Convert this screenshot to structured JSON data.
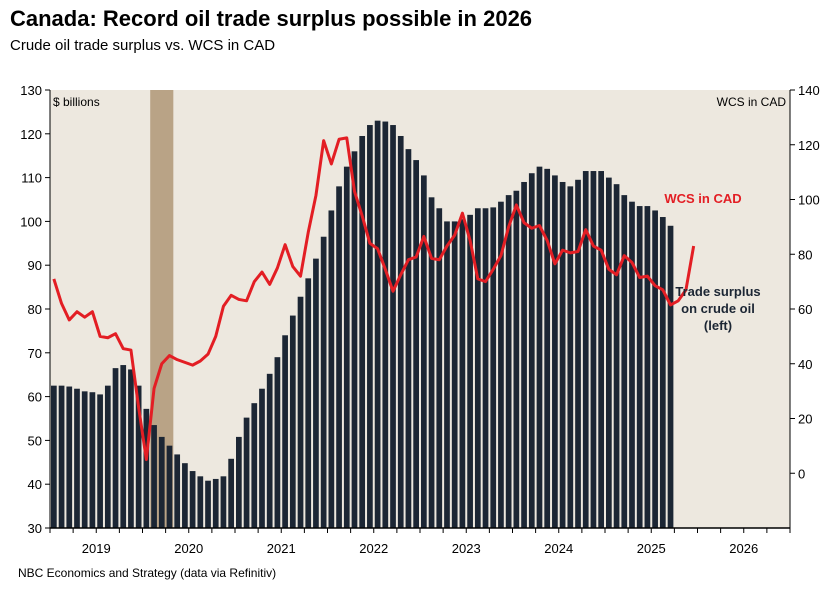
{
  "title": "Canada: Record oil trade surplus possible in 2026",
  "subtitle": "Crude oil trade surplus vs. WCS in CAD",
  "source": "NBC Economics and Strategy (data via Refinitiv)",
  "colors": {
    "plot_bg": "#ede8df",
    "bars": "#1c2634",
    "line": "#e31e24",
    "recession": "#b9a386",
    "axis": "#000000"
  },
  "chart_data": {
    "type": "bar+line",
    "xlabel": "",
    "x_tick_labels": [
      "2019",
      "2020",
      "2021",
      "2022",
      "2023",
      "2024",
      "2025",
      "2026"
    ],
    "left_axis": {
      "unit_label": "$ billions",
      "ylim": [
        30,
        130
      ],
      "ticks": [
        30,
        40,
        50,
        60,
        70,
        80,
        90,
        100,
        110,
        120,
        130
      ]
    },
    "right_axis": {
      "unit_label": "WCS in CAD",
      "ylim": [
        -20,
        140
      ],
      "ticks": [
        0,
        20,
        40,
        60,
        80,
        100,
        120,
        140
      ]
    },
    "shaded_period": {
      "start": "2020-02",
      "end": "2020-04"
    },
    "x_start": "2019-01",
    "x_end": "2026-12",
    "series": [
      {
        "name": "Trade surplus on crude oil (left)",
        "type": "bar",
        "axis": "left",
        "start": "2019-01",
        "values": [
          62.5,
          62.5,
          62.3,
          61.8,
          61.2,
          61,
          60.5,
          62.5,
          66.5,
          67.2,
          66.2,
          62.5,
          57.2,
          53.5,
          50.8,
          48.8,
          46.8,
          44.8,
          43,
          41.8,
          40.8,
          41.2,
          41.8,
          45.8,
          50.8,
          55.2,
          58.5,
          61.8,
          65.2,
          69,
          74,
          78.5,
          82.8,
          87,
          91.5,
          96.5,
          102.5,
          108,
          112.5,
          116,
          119.5,
          122,
          123,
          122.8,
          122,
          119.5,
          116.5,
          114,
          110.5,
          105.5,
          103,
          100,
          100,
          100.5,
          101.5,
          103,
          103,
          103.2,
          104.5,
          106,
          107,
          109,
          111,
          112.5,
          112,
          110.5,
          109,
          108,
          109.5,
          111.5,
          111.5,
          111.5,
          110,
          108.5,
          106,
          104.5,
          103.5,
          103.5,
          102.5,
          101,
          99
        ]
      },
      {
        "name": "WCS in CAD",
        "type": "line",
        "axis": "right",
        "start": "2019-01",
        "values": [
          71,
          62,
          56,
          59,
          57,
          59,
          50,
          49.5,
          51,
          45.5,
          45,
          24,
          5,
          31,
          40,
          43,
          41.5,
          40.5,
          39.5,
          41,
          43.5,
          50,
          61,
          65,
          63.5,
          63,
          70,
          73.5,
          69,
          75,
          83.5,
          75.5,
          72,
          88,
          101.5,
          121.5,
          113,
          122,
          122.5,
          103,
          94,
          84,
          82,
          74.5,
          66.5,
          72.5,
          78,
          79,
          86.5,
          78.5,
          78,
          83,
          87,
          95,
          85,
          71,
          70,
          74.5,
          79.5,
          90,
          98,
          91.5,
          89.5,
          90.5,
          85,
          76.5,
          81.5,
          80.5,
          81,
          89,
          83,
          81.5,
          74.5,
          72.5,
          79.5,
          77,
          71.5,
          72,
          68.5,
          67,
          61.5,
          63,
          67,
          83
        ]
      }
    ],
    "annotations": [
      {
        "text": "WCS in CAD",
        "color": "#e31e24"
      },
      {
        "lines": [
          "Trade surplus",
          "on crude oil",
          "(left)"
        ],
        "color": "#1c2634"
      }
    ]
  }
}
